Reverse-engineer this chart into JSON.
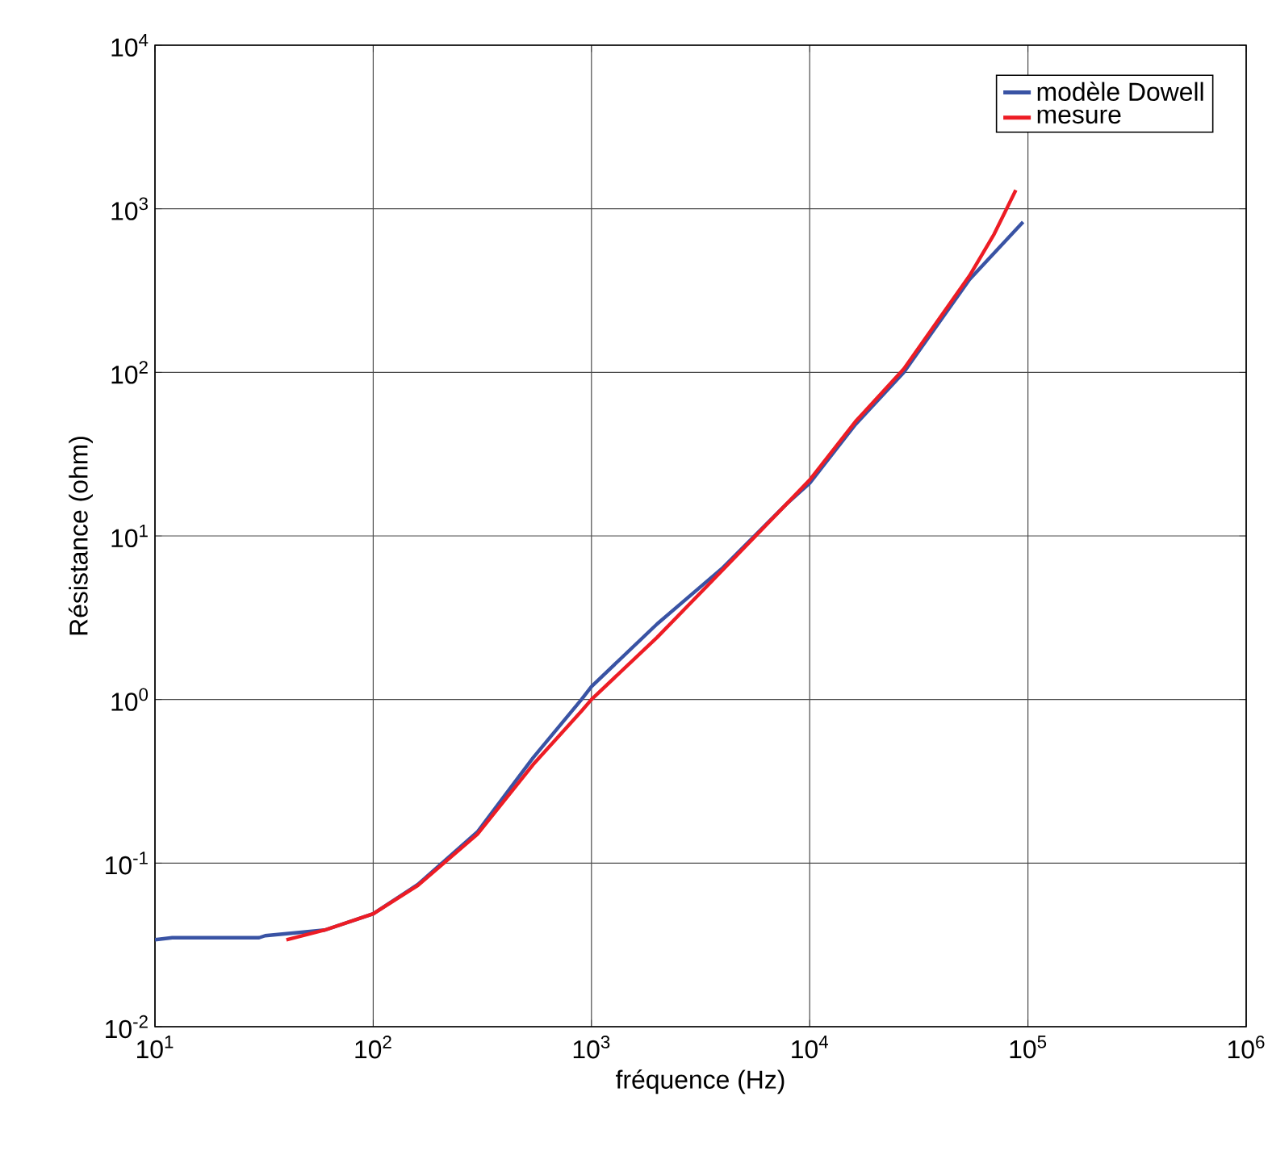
{
  "chart_data": {
    "type": "line",
    "xlabel": "fréquence (Hz)",
    "ylabel": "Résistance (ohm)",
    "log": "xy",
    "grid": true,
    "legend": "top right",
    "marker": "none",
    "line_style": "solid",
    "xlim": [
      10,
      1000000
    ],
    "ylim": [
      0.01,
      10000
    ],
    "xticks": [
      {
        "value": 10,
        "label": "10$^{1}$"
      },
      {
        "value": 100,
        "label": "10$^{2}$"
      },
      {
        "value": 1000,
        "label": "10$^{3}$"
      },
      {
        "value": 10000,
        "label": "10$^{4}$"
      },
      {
        "value": 100000,
        "label": "10$^{5}$"
      },
      {
        "value": 1000000,
        "label": "10$^{6}$"
      }
    ],
    "yticks": [
      {
        "value": 0.01,
        "label": "10$^{-2}$"
      },
      {
        "value": 0.1,
        "label": "10$^{-1}$"
      },
      {
        "value": 1,
        "label": "10$^{0}$"
      },
      {
        "value": 10,
        "label": "10$^{1}$"
      },
      {
        "value": 100,
        "label": "10$^{2}$"
      },
      {
        "value": 1000,
        "label": "10$^{3}$"
      },
      {
        "value": 10000,
        "label": "10$^{4}$"
      }
    ],
    "series": [
      {
        "name": "modèle Dowell",
        "color": "#3953a4",
        "x": [
          10,
          12,
          30,
          32,
          60,
          100,
          160,
          300,
          540,
          900,
          1000,
          2000,
          3950,
          7800,
          10000,
          16200,
          27000,
          54000,
          95000
        ],
        "values": [
          0.034,
          0.035,
          0.035,
          0.036,
          0.039,
          0.049,
          0.074,
          0.155,
          0.44,
          1.0,
          1.2,
          2.9,
          6.3,
          15.6,
          21,
          48,
          100,
          370,
          830
        ]
      },
      {
        "name": "mesure",
        "color": "#ed1c24",
        "x": [
          40,
          60,
          100,
          160,
          300,
          540,
          900,
          1000,
          2000,
          3950,
          7800,
          10000,
          16200,
          27000,
          54000,
          70000,
          88000
        ],
        "values": [
          0.034,
          0.039,
          0.049,
          0.073,
          0.15,
          0.4,
          0.85,
          1.0,
          2.4,
          6.1,
          15.6,
          22,
          50,
          105,
          390,
          700,
          1300
        ]
      }
    ]
  }
}
